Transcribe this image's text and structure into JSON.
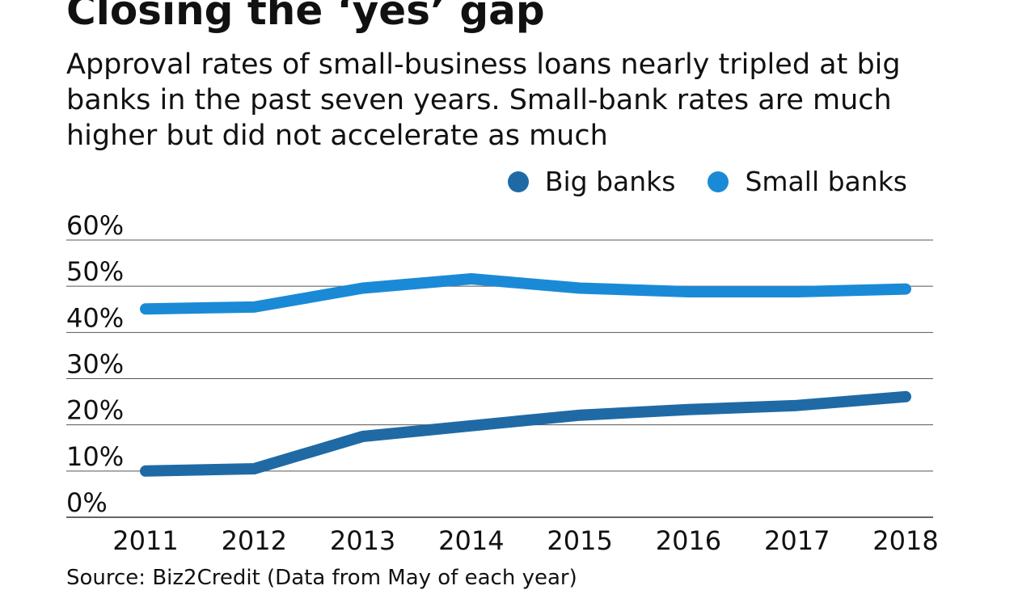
{
  "chart_data": {
    "type": "line",
    "title": "Closing the ‘yes’ gap",
    "subtitle": "Approval rates of small-business loans nearly tripled at big banks in the past seven years. Small-bank rates are much higher but did not accelerate as much",
    "categories": [
      "2011",
      "2012",
      "2013",
      "2014",
      "2015",
      "2016",
      "2017",
      "2018"
    ],
    "series": [
      {
        "name": "Big banks",
        "color": "#1f6aa5",
        "values": [
          10,
          10.5,
          17.5,
          19.8,
          22.1,
          23.3,
          24.2,
          26.1
        ]
      },
      {
        "name": "Small banks",
        "color": "#1b8ad6",
        "values": [
          45.1,
          45.5,
          49.6,
          51.6,
          49.6,
          48.8,
          48.8,
          49.4
        ]
      }
    ],
    "y_ticks": [
      "0%",
      "10%",
      "20%",
      "30%",
      "40%",
      "50%",
      "60%"
    ],
    "ylim": [
      0,
      60
    ],
    "grid": true,
    "legend_position": "top-right",
    "source": "Source: Biz2Credit (Data from May of each year)"
  }
}
